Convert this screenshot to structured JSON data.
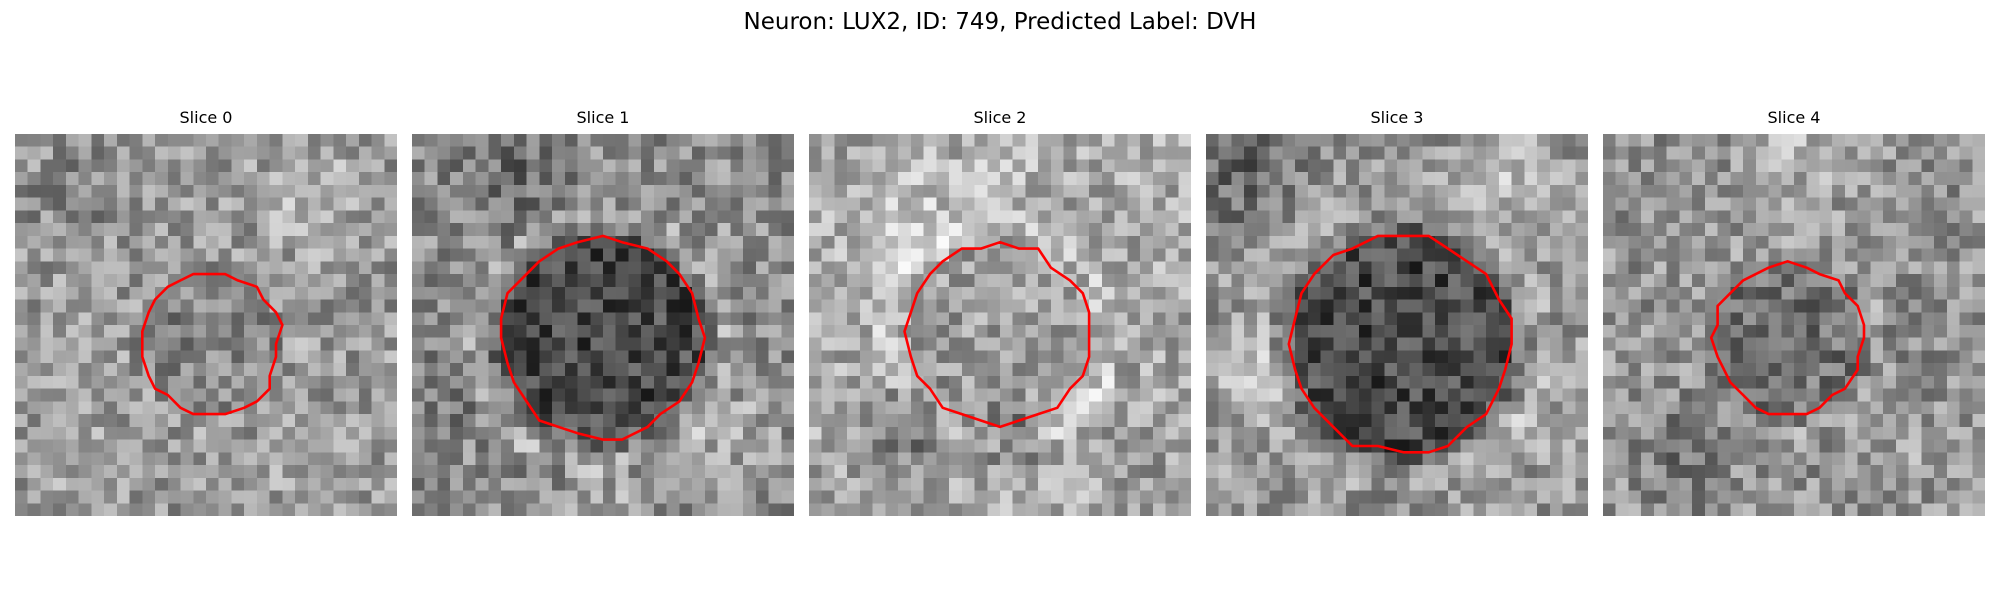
{
  "figure": {
    "title": "Neuron: LUX2, ID: 749, Predicted Label: DVH"
  },
  "colors": {
    "contour": "#ff0000",
    "background": "#ffffff"
  },
  "panels": [
    {
      "title": "Slice 0",
      "grid": 30
    },
    {
      "title": "Slice 1",
      "grid": 30
    },
    {
      "title": "Slice 2",
      "grid": 30
    },
    {
      "title": "Slice 3",
      "grid": 30
    },
    {
      "title": "Slice 4",
      "grid": 30
    }
  ]
}
